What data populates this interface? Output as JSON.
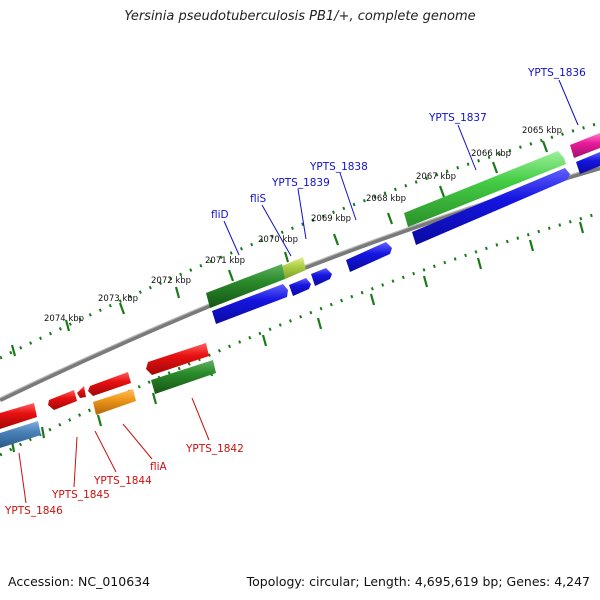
{
  "title": "Yersinia pseudotuberculosis PB1/+, complete genome",
  "footer": {
    "accession": "Accession: NC_010634",
    "summary": "Topology: circular; Length: 4,695,619 bp; Genes: 4,247"
  },
  "scale_labels": [
    "2065 kbp",
    "2066 kbp",
    "2067 kbp",
    "2068 kbp",
    "2069 kbp",
    "2070 kbp",
    "2071 kbp",
    "2072 kbp",
    "2073 kbp",
    "2074 kbp"
  ],
  "forward_labels": [
    "YPTS_1836",
    "YPTS_1837",
    "YPTS_1838",
    "YPTS_1839",
    "fliS",
    "fliD"
  ],
  "reverse_labels": [
    "YPTS_1842",
    "fliA",
    "YPTS_1844",
    "YPTS_1845",
    "YPTS_1846"
  ],
  "colors": {
    "forward_label": "#1010cc",
    "reverse_label": "#cc1010",
    "backbone": "#808080",
    "tick": "#1a7a1a",
    "blue_cds": "#1515e0",
    "red_cds": "#e81010",
    "green_cds": "#2a8a2a",
    "light_green_cds": "#44cc44",
    "pink_cds": "#e81c9c",
    "orange_cds": "#f0961a",
    "steel_cds": "#4a82b8",
    "yellow_green_cds": "#b0d048"
  }
}
